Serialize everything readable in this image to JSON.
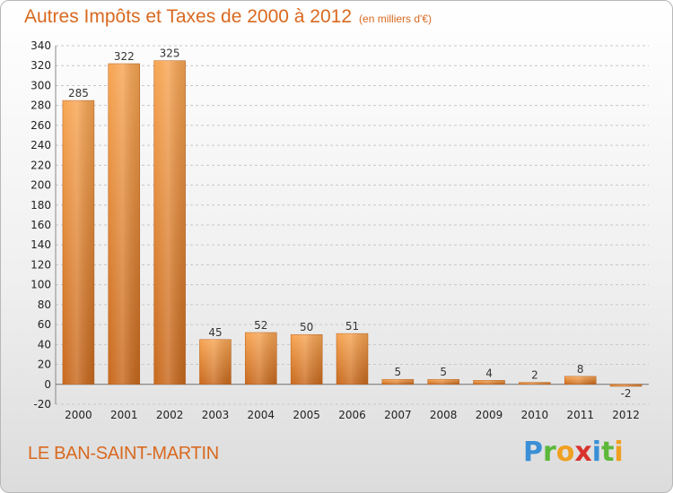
{
  "header": {
    "title": "Autres Impôts et Taxes de 2000 à 2012",
    "subtitle": "(en milliers d'€)"
  },
  "footer": {
    "commune": "LE BAN-SAINT-MARTIN",
    "brand_letters": [
      "P",
      "r",
      "o",
      "x",
      "i",
      "t",
      "i"
    ],
    "brand_colors": [
      "#3a8fd6",
      "#5cb83a",
      "#f0a020",
      "#d8322c",
      "#3a8fd6",
      "#5cb83a",
      "#f0a020"
    ]
  },
  "colors": {
    "bar_light": "#f7a553",
    "bar_dark": "#c8691e",
    "grid": "#c8c8c8",
    "accent": "#d9691f"
  },
  "chart_data": {
    "type": "bar",
    "categories": [
      "2000",
      "2001",
      "2002",
      "2003",
      "2004",
      "2005",
      "2006",
      "2007",
      "2008",
      "2009",
      "2010",
      "2011",
      "2012"
    ],
    "values": [
      285,
      322,
      325,
      45,
      52,
      50,
      51,
      5,
      5,
      4,
      2,
      8,
      -2
    ],
    "value_labels": [
      "285",
      "322",
      "325",
      "45",
      "52",
      "50",
      "51",
      "5",
      "5",
      "4",
      "2",
      "8",
      "-2"
    ],
    "ylim": [
      -20,
      340
    ],
    "yticks": [
      -20,
      0,
      20,
      40,
      60,
      80,
      100,
      120,
      140,
      160,
      180,
      200,
      220,
      240,
      260,
      280,
      300,
      320,
      340
    ],
    "grid": true,
    "legend": "none"
  }
}
